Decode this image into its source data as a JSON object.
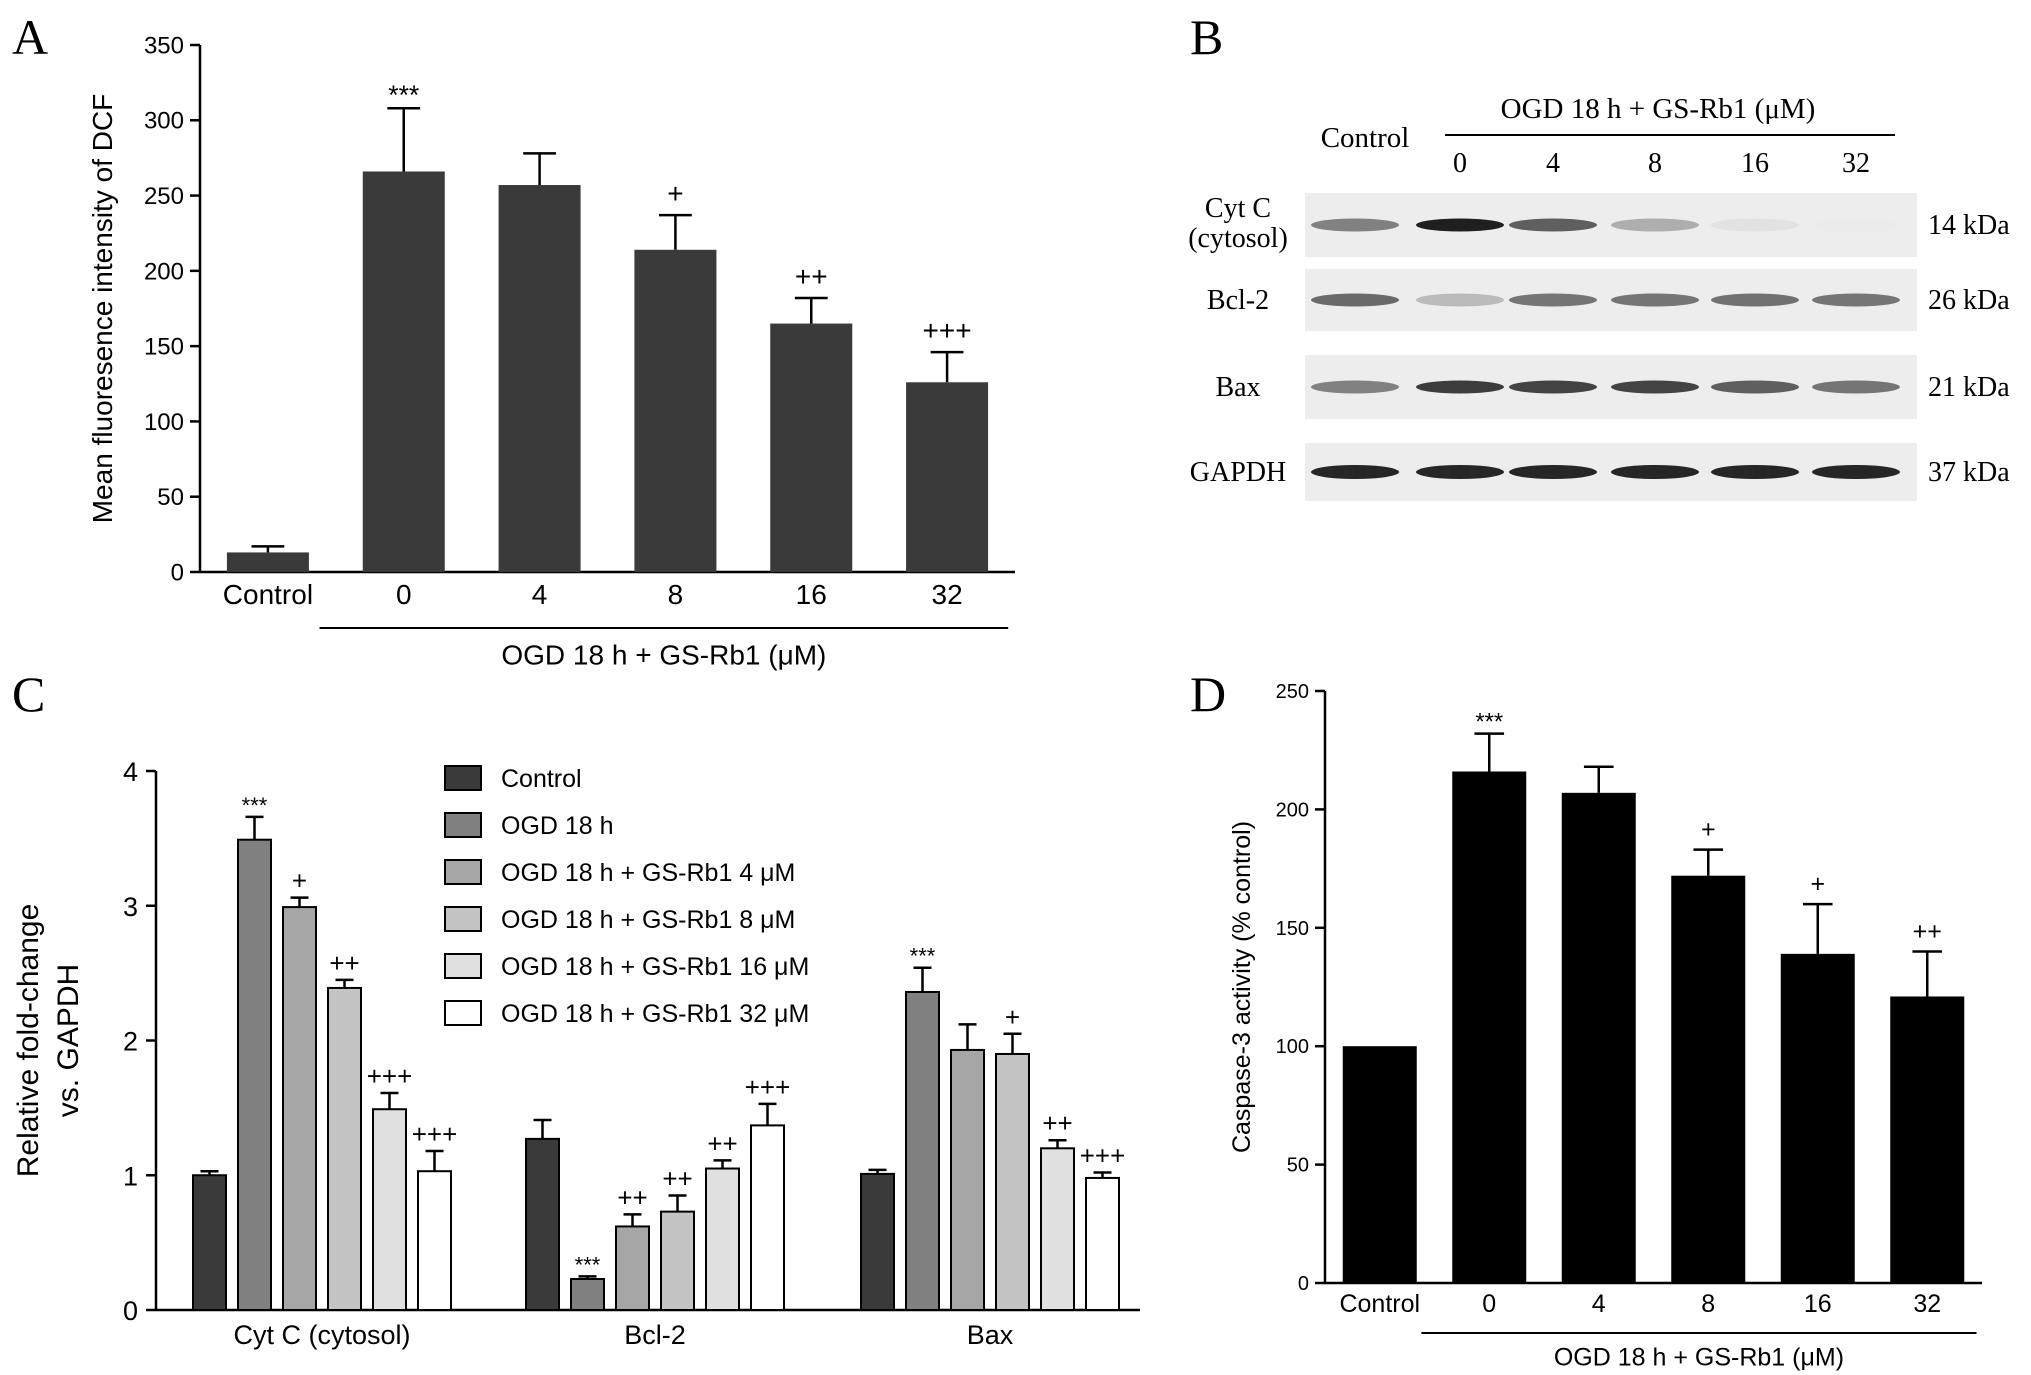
{
  "panels": {
    "a_letter": "A",
    "b_letter": "B",
    "c_letter": "C",
    "d_letter": "D"
  },
  "chart_data": [
    {
      "panel": "A",
      "type": "bar",
      "ylabel": "Mean fluoresence intensity of DCF",
      "xlabel": "",
      "categories": [
        "Control",
        "0",
        "4",
        "8",
        "16",
        "32"
      ],
      "values": [
        13,
        266,
        257,
        214,
        165,
        126
      ],
      "errors": [
        4,
        42,
        21,
        23,
        17,
        20
      ],
      "annotations": [
        "",
        "***",
        "",
        "+",
        "++",
        "+++"
      ],
      "group_label": "OGD 18 h + GS-Rb1 (μM)",
      "ylim": [
        0,
        350
      ],
      "yticks": [
        0,
        50,
        100,
        150,
        200,
        250,
        300,
        350
      ],
      "bar_color": "#3a3a3a"
    },
    {
      "panel": "B",
      "type": "table",
      "control_label": "Control",
      "group_label": "OGD  18 h + GS-Rb1 (μM)",
      "columns": [
        "0",
        "4",
        "8",
        "16",
        "32"
      ],
      "rows": [
        {
          "label_line1": "Cyt C",
          "label_line2": "(cytosol)",
          "size": "14 kDa",
          "intensity": [
            0.55,
            0.98,
            0.7,
            0.35,
            0.12,
            0.08
          ]
        },
        {
          "label_line1": "Bcl-2",
          "label_line2": "",
          "size": "26 kDa",
          "intensity": [
            0.65,
            0.3,
            0.6,
            0.6,
            0.62,
            0.6
          ]
        },
        {
          "label_line1": "Bax",
          "label_line2": "",
          "size": "21 kDa",
          "intensity": [
            0.55,
            0.85,
            0.82,
            0.82,
            0.7,
            0.6
          ]
        },
        {
          "label_line1": "GAPDH",
          "label_line2": "",
          "size": "37 kDa",
          "intensity": [
            0.95,
            0.95,
            0.95,
            0.95,
            0.95,
            0.95
          ]
        }
      ]
    },
    {
      "panel": "C",
      "type": "bar",
      "ylabel_line1": "Relative fold-change",
      "ylabel_line2": "vs. GAPDH",
      "xlabel": "",
      "categories": [
        "Cyt C (cytosol)",
        "Bcl-2",
        "Bax"
      ],
      "ylim": [
        0,
        4
      ],
      "yticks": [
        0,
        1,
        2,
        3,
        4
      ],
      "legend_position": "top-center",
      "series": [
        {
          "name": "Control",
          "color": "#3a3a3a",
          "values": [
            1.0,
            1.27,
            1.01
          ],
          "errors": [
            0.03,
            0.14,
            0.03
          ],
          "annotations": [
            "",
            "",
            ""
          ]
        },
        {
          "name": "OGD 18 h",
          "color": "#808080",
          "values": [
            3.49,
            0.23,
            2.36
          ],
          "errors": [
            0.17,
            0.02,
            0.18
          ],
          "annotations": [
            "***",
            "***",
            "***"
          ]
        },
        {
          "name": "OGD 18 h + GS-Rb1 4 μM",
          "color": "#a6a6a6",
          "values": [
            2.99,
            0.62,
            1.93
          ],
          "errors": [
            0.07,
            0.09,
            0.19
          ],
          "annotations": [
            "+",
            "++",
            ""
          ]
        },
        {
          "name": "OGD 18 h + GS-Rb1 8 μM",
          "color": "#c4c4c4",
          "values": [
            2.39,
            0.73,
            1.9
          ],
          "errors": [
            0.06,
            0.12,
            0.15
          ],
          "annotations": [
            "++",
            "++",
            "+"
          ]
        },
        {
          "name": "OGD 18 h + GS-Rb1 16 μM",
          "color": "#e0e0e0",
          "values": [
            1.49,
            1.05,
            1.2
          ],
          "errors": [
            0.12,
            0.06,
            0.06
          ],
          "annotations": [
            "+++",
            "++",
            "++"
          ]
        },
        {
          "name": "OGD 18 h + GS-Rb1 32 μM",
          "color": "#ffffff",
          "values": [
            1.03,
            1.37,
            0.98
          ],
          "errors": [
            0.15,
            0.16,
            0.04
          ],
          "annotations": [
            "+++",
            "+++",
            "+++"
          ]
        }
      ]
    },
    {
      "panel": "D",
      "type": "bar",
      "ylabel": "Caspase-3 activity (% control)",
      "xlabel": "",
      "categories": [
        "Control",
        "0",
        "4",
        "8",
        "16",
        "32"
      ],
      "values": [
        100,
        216,
        207,
        172,
        139,
        121
      ],
      "errors": [
        0,
        16,
        11,
        11,
        21,
        19
      ],
      "annotations": [
        "",
        "***",
        "",
        "+",
        "+",
        "++"
      ],
      "group_label": "OGD 18 h + GS-Rb1 (μM)",
      "ylim": [
        0,
        250
      ],
      "yticks": [
        0,
        50,
        100,
        150,
        200,
        250
      ],
      "bar_color": "#000000"
    }
  ]
}
